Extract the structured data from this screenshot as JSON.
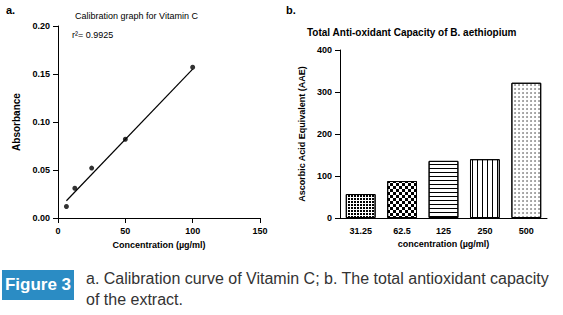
{
  "chart_data": [
    {
      "type": "scatter",
      "panel_label": "a.",
      "title": "Calibration graph for Vitamin C",
      "annotations": [
        "r²= 0.9925"
      ],
      "x_label": "Concentration (µg/ml)",
      "y_label": "Absorbance",
      "x": [
        6.25,
        12.5,
        25,
        50,
        100
      ],
      "values": [
        0.012,
        0.031,
        0.052,
        0.082,
        0.157
      ],
      "marker": "circle",
      "color": "#000000",
      "fit": {
        "type": "line",
        "x": [
          6.25,
          100
        ],
        "values": [
          0.018,
          0.155
        ]
      },
      "xlim": [
        0,
        150
      ],
      "xticks": [
        0,
        50,
        100,
        150
      ],
      "ylim": [
        0,
        0.2
      ],
      "yticks": [
        {
          "value": 0,
          "label": "0.00"
        },
        {
          "value": 0.05,
          "label": "0.05"
        },
        {
          "value": 0.1,
          "label": "0.10"
        },
        {
          "value": 0.15,
          "label": "0.15"
        },
        {
          "value": 0.2,
          "label": "0.20"
        }
      ],
      "grid": false
    },
    {
      "type": "bar",
      "panel_label": "b.",
      "title": "Total Anti-oxidant Capacity of B. aethiopium",
      "x_label": "concentration (µg/ml)",
      "y_label": "Ascorbic Acid Equivalent (AAE)",
      "categories": [
        "31.25",
        "62.5",
        "125",
        "250",
        "500"
      ],
      "values": [
        57,
        88,
        136,
        140,
        322
      ],
      "color": "#ffffff",
      "ylim": [
        0,
        400
      ],
      "yticks": [
        0,
        100,
        200,
        300,
        400
      ],
      "grid": false
    }
  ],
  "figure": {
    "label": "Figure 3",
    "caption": "a. Calibration curve of Vitamin C; b. The total antioxidant capacity of the extract."
  }
}
